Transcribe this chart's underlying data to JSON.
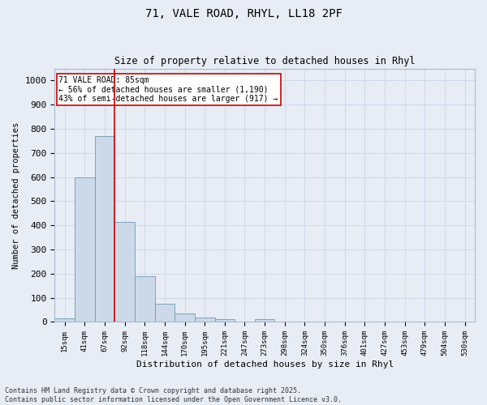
{
  "title_line1": "71, VALE ROAD, RHYL, LL18 2PF",
  "title_line2": "Size of property relative to detached houses in Rhyl",
  "xlabel": "Distribution of detached houses by size in Rhyl",
  "ylabel": "Number of detached properties",
  "categories": [
    "15sqm",
    "41sqm",
    "67sqm",
    "92sqm",
    "118sqm",
    "144sqm",
    "170sqm",
    "195sqm",
    "221sqm",
    "247sqm",
    "273sqm",
    "298sqm",
    "324sqm",
    "350sqm",
    "376sqm",
    "401sqm",
    "427sqm",
    "453sqm",
    "479sqm",
    "504sqm",
    "530sqm"
  ],
  "values": [
    15,
    600,
    770,
    415,
    190,
    75,
    35,
    18,
    12,
    0,
    12,
    0,
    0,
    0,
    0,
    0,
    0,
    0,
    0,
    0,
    0
  ],
  "bar_color": "#ccd9e8",
  "bar_edge_color": "#7098b8",
  "vline_color": "#cc0000",
  "vline_pos": 2.5,
  "annotation_text": "71 VALE ROAD: 85sqm\n← 56% of detached houses are smaller (1,190)\n43% of semi-detached houses are larger (917) →",
  "annotation_box_color": "#ffffff",
  "annotation_box_edge": "#cc0000",
  "ylim": [
    0,
    1050
  ],
  "yticks": [
    0,
    100,
    200,
    300,
    400,
    500,
    600,
    700,
    800,
    900,
    1000
  ],
  "grid_color": "#d0d8e8",
  "background_color": "#e8edf5",
  "footnote": "Contains HM Land Registry data © Crown copyright and database right 2025.\nContains public sector information licensed under the Open Government Licence v3.0."
}
